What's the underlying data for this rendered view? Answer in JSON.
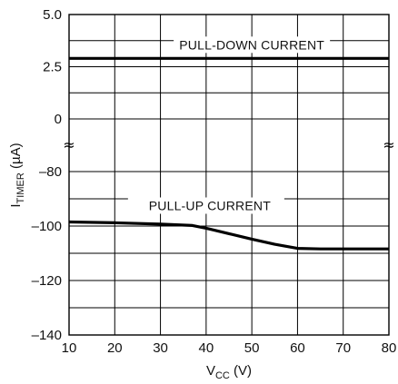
{
  "chart_data": {
    "type": "line",
    "xlabel": {
      "main": "V",
      "sub": "CC",
      "unit": " (V)"
    },
    "ylabel": {
      "main": "I",
      "sub": "TIMER",
      "unit": " (µA)"
    },
    "xlim": [
      10,
      80
    ],
    "x_ticks": [
      10,
      20,
      30,
      40,
      50,
      60,
      70,
      80
    ],
    "x_tick_labels": [
      "10",
      "20",
      "30",
      "40",
      "50",
      "60",
      "70",
      "80"
    ],
    "y_axis_break": true,
    "y_upper_segment": {
      "ylim": [
        0,
        5.0
      ],
      "ticks": [
        0,
        2.5,
        5.0
      ],
      "tick_labels": [
        "0",
        "2.5",
        "5.0"
      ]
    },
    "y_lower_segment": {
      "ylim": [
        -140,
        -80
      ],
      "ticks": [
        -140,
        -120,
        -100,
        -80
      ],
      "tick_labels": [
        "–140",
        "–120",
        "–100",
        "–80"
      ]
    },
    "grid": true,
    "series": [
      {
        "name": "PULL-DOWN CURRENT",
        "segment": "upper",
        "points": [
          [
            10,
            2.9
          ],
          [
            80,
            2.9
          ]
        ]
      },
      {
        "name": "PULL-UP CURRENT",
        "segment": "lower",
        "points": [
          [
            10,
            -98.5
          ],
          [
            20,
            -98.8
          ],
          [
            30,
            -99.3
          ],
          [
            37,
            -99.8
          ],
          [
            40,
            -100.8
          ],
          [
            45,
            -102.8
          ],
          [
            50,
            -104.8
          ],
          [
            55,
            -106.7
          ],
          [
            60,
            -108.2
          ],
          [
            65,
            -108.4
          ],
          [
            70,
            -108.4
          ],
          [
            80,
            -108.4
          ]
        ]
      }
    ],
    "break_symbol": "≈"
  }
}
